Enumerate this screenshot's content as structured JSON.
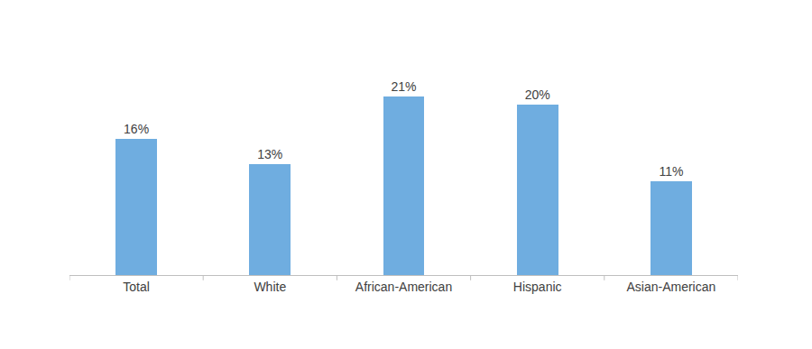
{
  "chart_data": {
    "type": "bar",
    "categories": [
      "Total",
      "White",
      "African-American",
      "Hispanic",
      "Asian-American"
    ],
    "values": [
      16,
      13,
      21,
      20,
      11
    ],
    "value_labels": [
      "16%",
      "13%",
      "21%",
      "20%",
      "11%"
    ],
    "color": "#6fade0",
    "ylim": [
      0,
      28
    ],
    "grid": false,
    "data_labels": true,
    "tick_labels": "x"
  }
}
